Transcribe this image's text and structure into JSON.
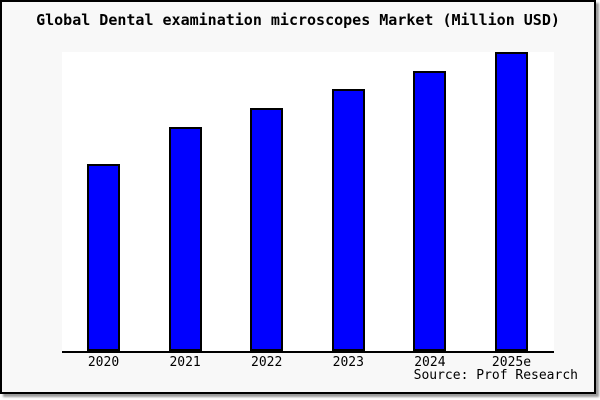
{
  "chart_data": {
    "type": "bar",
    "title": "Global Dental examination microscopes Market (Million USD)",
    "categories": [
      "2020",
      "2021",
      "2022",
      "2023",
      "2024",
      "2025e"
    ],
    "values": [
      100,
      120,
      130,
      140,
      150,
      160
    ],
    "values_note": "no y-axis ticks or gridlines shown; values estimated from relative bar heights",
    "xlabel": "",
    "ylabel": "",
    "ylim": [
      0,
      160
    ],
    "grid": false,
    "legend": false,
    "y_axis_ticks_visible": false,
    "source": "Source: Prof Research"
  },
  "colors": {
    "bar_fill": "#0000ff",
    "bar_border": "#000000",
    "axis": "#000000",
    "frame_background": "#f8f8f8",
    "plot_background": "#ffffff",
    "text": "#000000"
  }
}
